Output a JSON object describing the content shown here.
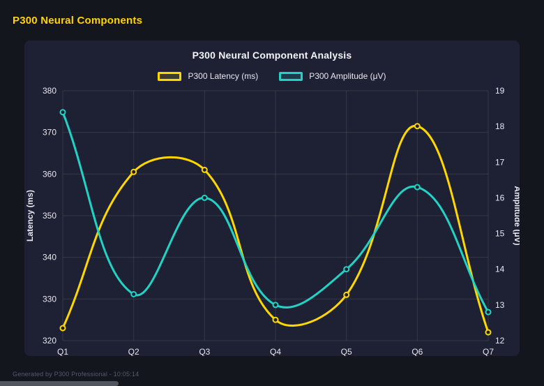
{
  "page": {
    "header_title": "P300 Neural Components",
    "footer": "Generated by P300 Professional - 10:05:14"
  },
  "colors": {
    "background": "#14161e",
    "panel": "#1d2133",
    "header_accent": "#ffd400",
    "latency_series": "#ffd700",
    "amplitude_series": "#22d3c5",
    "grid": "rgba(255,255,255,0.10)",
    "text": "#e7e9f0"
  },
  "chart_data": {
    "type": "line",
    "title": "P300 Neural Component Analysis",
    "categories": [
      "Q1",
      "Q2",
      "Q3",
      "Q4",
      "Q5",
      "Q6",
      "Q7"
    ],
    "series": [
      {
        "name": "P300 Latency (ms)",
        "axis": "left",
        "color": "#ffd700",
        "values": [
          323,
          360.5,
          361,
          325,
          331,
          371.5,
          322
        ]
      },
      {
        "name": "P300 Amplitude (μV)",
        "axis": "right",
        "color": "#22d3c5",
        "values": [
          18.4,
          13.3,
          16.0,
          13.0,
          14.0,
          16.3,
          12.8
        ]
      }
    ],
    "left_axis": {
      "label": "Latency (ms)",
      "min": 320,
      "max": 380,
      "ticks": [
        320,
        330,
        340,
        350,
        360,
        370,
        380
      ]
    },
    "right_axis": {
      "label": "Amplitude (μV)",
      "min": 12,
      "max": 19,
      "ticks": [
        12,
        13,
        14,
        15,
        16,
        17,
        18,
        19
      ]
    },
    "grid": true,
    "legend_position": "top",
    "line_tension": 0.4
  }
}
